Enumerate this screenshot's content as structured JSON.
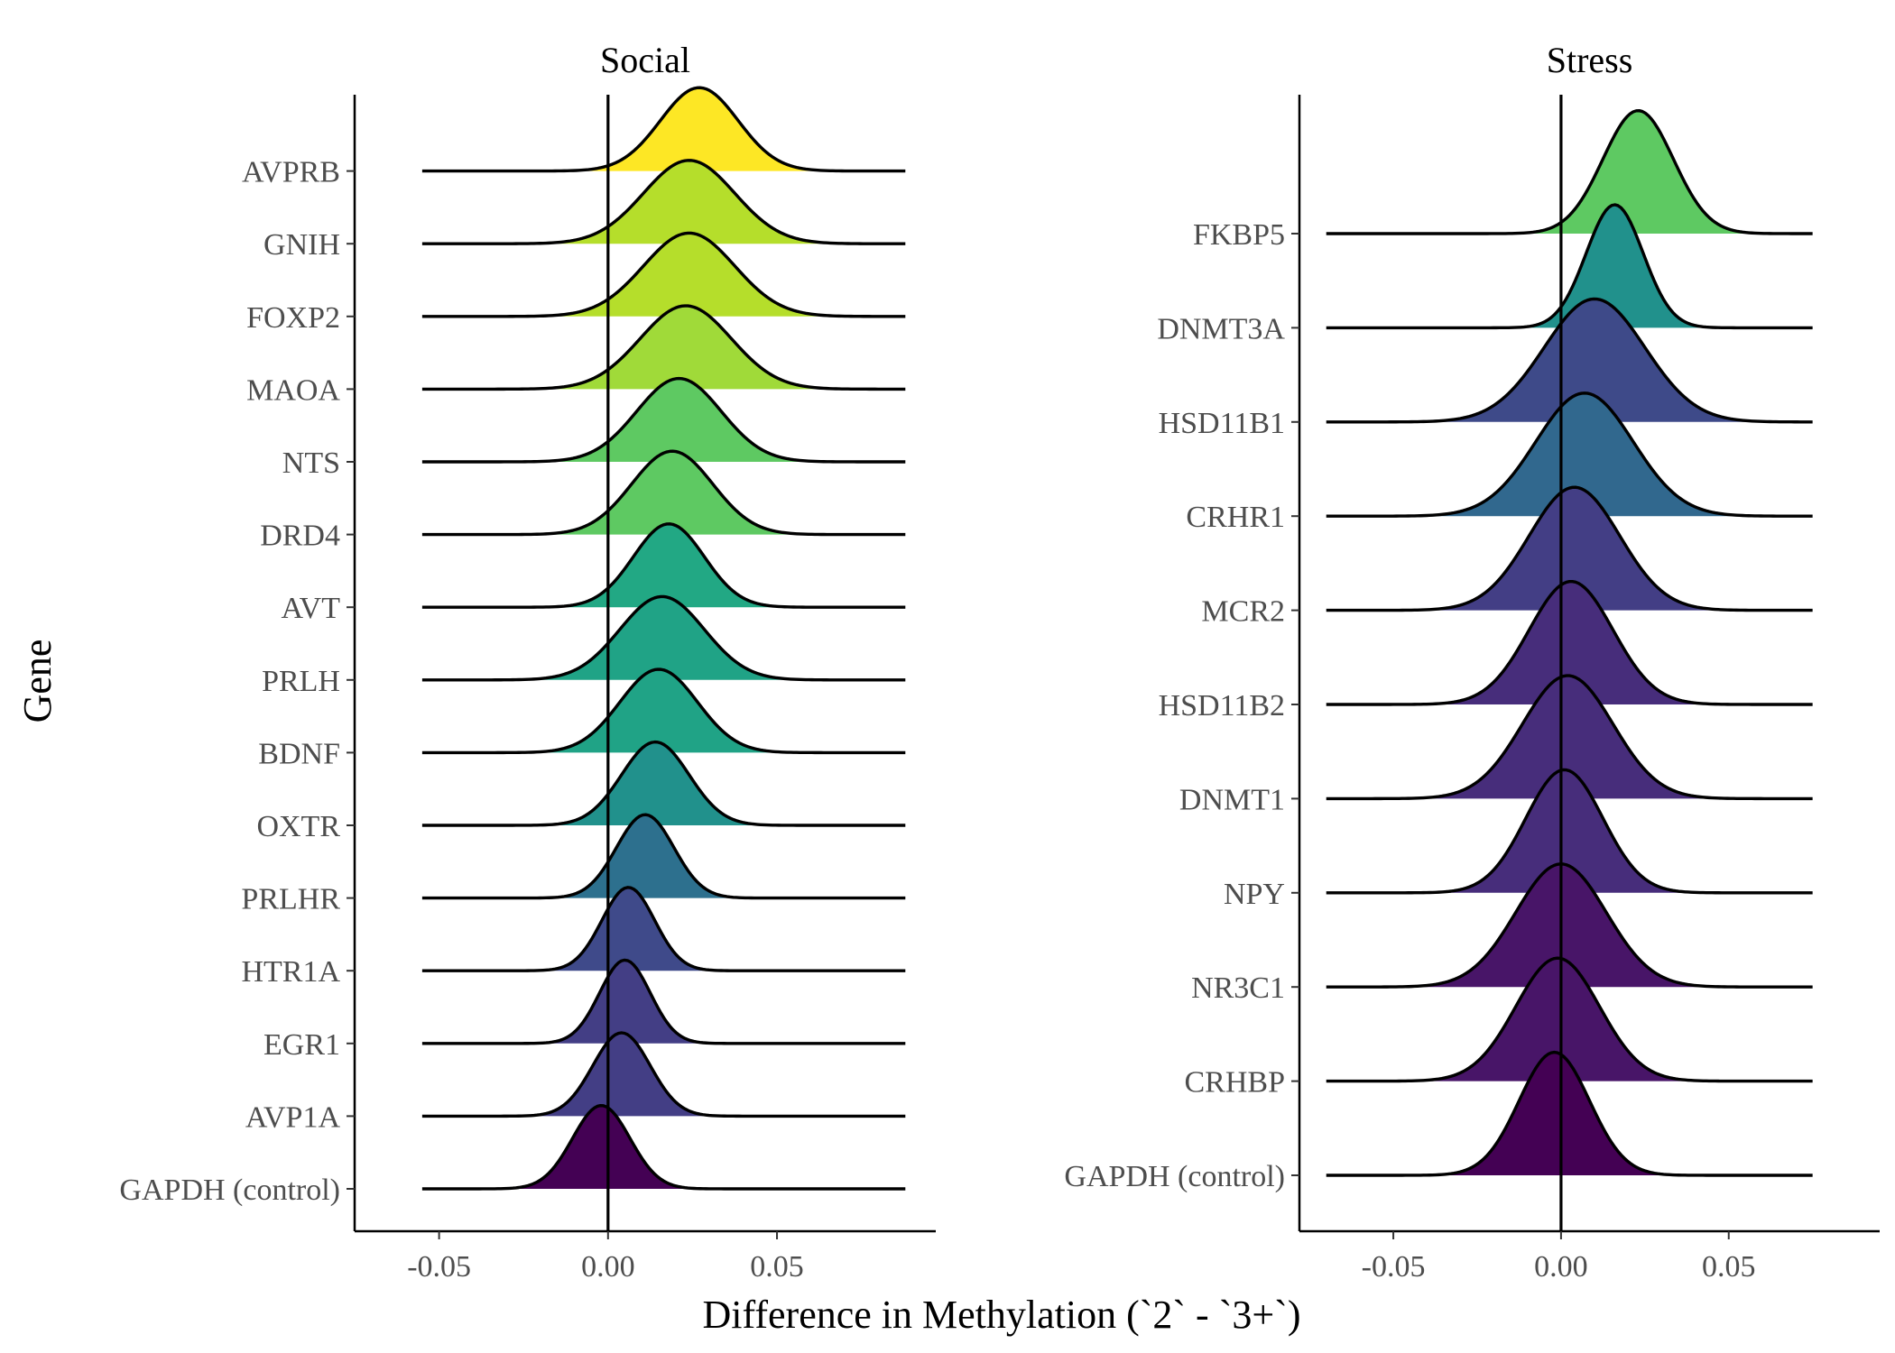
{
  "chart_data": {
    "type": "ridgeline",
    "xlabel": "Difference in Methylation (`2` - `3+`)",
    "ylabel": "Gene",
    "panels": [
      {
        "title": "Social",
        "xlim": [
          -0.075,
          0.097
        ],
        "xticks": [
          -0.05,
          0.0,
          0.05
        ],
        "xtick_labels": [
          "-0.05",
          "0.00",
          "0.05"
        ],
        "range": [
          -0.055,
          0.088
        ],
        "scale": 1.05,
        "reference_line": 0.0,
        "genes": [
          {
            "name": "GAPDH (control)",
            "peak": -0.002,
            "sd": 0.0085,
            "color": "#440154"
          },
          {
            "name": "AVP1A",
            "peak": 0.004,
            "sd": 0.0085,
            "color": "#433e85"
          },
          {
            "name": "EGR1",
            "peak": 0.005,
            "sd": 0.0075,
            "color": "#433e85"
          },
          {
            "name": "HTR1A",
            "peak": 0.006,
            "sd": 0.0078,
            "color": "#3f4a8a"
          },
          {
            "name": "PRLHR",
            "peak": 0.011,
            "sd": 0.0085,
            "color": "#2d708e"
          },
          {
            "name": "OXTR",
            "peak": 0.014,
            "sd": 0.01,
            "color": "#21918c"
          },
          {
            "name": "BDNF",
            "peak": 0.015,
            "sd": 0.0115,
            "color": "#20a386"
          },
          {
            "name": "PRLH",
            "peak": 0.016,
            "sd": 0.0125,
            "color": "#20a386"
          },
          {
            "name": "AVT",
            "peak": 0.018,
            "sd": 0.0105,
            "color": "#22a884"
          },
          {
            "name": "DRD4",
            "peak": 0.019,
            "sd": 0.012,
            "color": "#5ec962"
          },
          {
            "name": "NTS",
            "peak": 0.021,
            "sd": 0.0125,
            "color": "#5ec962"
          },
          {
            "name": "MAOA",
            "peak": 0.023,
            "sd": 0.0135,
            "color": "#a0da39"
          },
          {
            "name": "FOXP2",
            "peak": 0.024,
            "sd": 0.0135,
            "color": "#b5de2b"
          },
          {
            "name": "GNIH",
            "peak": 0.024,
            "sd": 0.0135,
            "color": "#b5de2b"
          },
          {
            "name": "AVPRB",
            "peak": 0.027,
            "sd": 0.0115,
            "color": "#fde725"
          }
        ]
      },
      {
        "title": "Stress",
        "xlim": [
          -0.078,
          0.095
        ],
        "xticks": [
          -0.05,
          0.0,
          0.05
        ],
        "xtick_labels": [
          "-0.05",
          "0.00",
          "0.05"
        ],
        "range": [
          -0.07,
          0.075
        ],
        "scale": 1.55,
        "reference_line": 0.0,
        "genes": [
          {
            "name": "GAPDH (control)",
            "peak": -0.002,
            "sd": 0.0105,
            "color": "#440154"
          },
          {
            "name": "CRHBP",
            "peak": -0.001,
            "sd": 0.0125,
            "color": "#481568"
          },
          {
            "name": "NR3C1",
            "peak": 0.0,
            "sd": 0.0135,
            "color": "#481568"
          },
          {
            "name": "NPY",
            "peak": 0.001,
            "sd": 0.0115,
            "color": "#472d7b"
          },
          {
            "name": "DNMT1",
            "peak": 0.002,
            "sd": 0.0135,
            "color": "#472d7b"
          },
          {
            "name": "HSD11B2",
            "peak": 0.003,
            "sd": 0.0125,
            "color": "#472d7b"
          },
          {
            "name": "MCR2",
            "peak": 0.004,
            "sd": 0.0135,
            "color": "#433e85"
          },
          {
            "name": "CRHR1",
            "peak": 0.007,
            "sd": 0.0145,
            "color": "#31688e"
          },
          {
            "name": "HSD11B1",
            "peak": 0.01,
            "sd": 0.015,
            "color": "#3e4a89"
          },
          {
            "name": "DNMT3A",
            "peak": 0.016,
            "sd": 0.0085,
            "color": "#21918c"
          },
          {
            "name": "FKBP5",
            "peak": 0.023,
            "sd": 0.0105,
            "color": "#5ec962"
          }
        ]
      }
    ]
  }
}
